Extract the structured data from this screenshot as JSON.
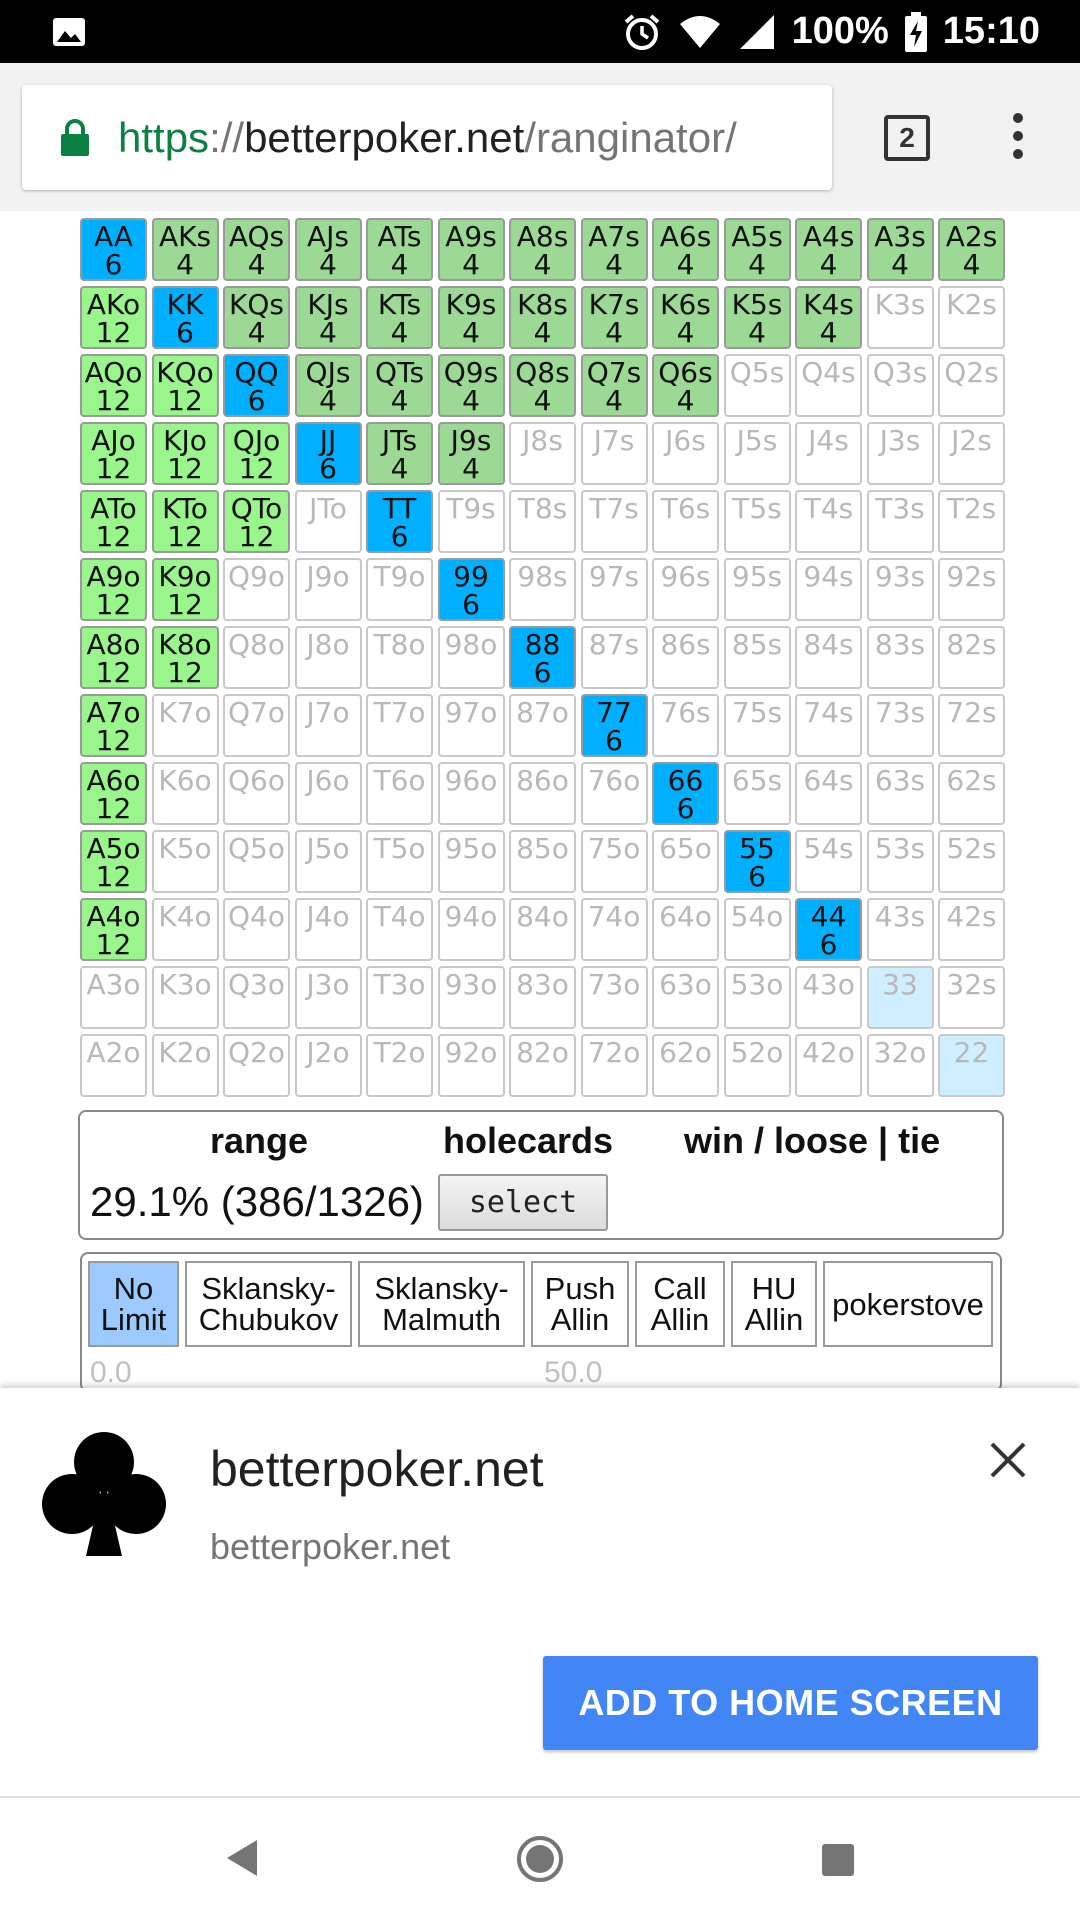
{
  "status_bar": {
    "battery": "100%",
    "time": "15:10"
  },
  "browser": {
    "url_scheme": "https",
    "url_sep": "://",
    "url_host": "betterpoker.net",
    "url_path": "/ranginator/",
    "tab_count": "2"
  },
  "grid": {
    "rows": [
      [
        [
          "AA",
          "6",
          "pair"
        ],
        [
          "AKs",
          "4",
          "suited"
        ],
        [
          "AQs",
          "4",
          "suited"
        ],
        [
          "AJs",
          "4",
          "suited"
        ],
        [
          "ATs",
          "4",
          "suited"
        ],
        [
          "A9s",
          "4",
          "suited"
        ],
        [
          "A8s",
          "4",
          "suited"
        ],
        [
          "A7s",
          "4",
          "suited"
        ],
        [
          "A6s",
          "4",
          "suited"
        ],
        [
          "A5s",
          "4",
          "suited"
        ],
        [
          "A4s",
          "4",
          "suited"
        ],
        [
          "A3s",
          "4",
          "suited"
        ],
        [
          "A2s",
          "4",
          "suited"
        ]
      ],
      [
        [
          "AKo",
          "12",
          "offsuit"
        ],
        [
          "KK",
          "6",
          "pair"
        ],
        [
          "KQs",
          "4",
          "suited"
        ],
        [
          "KJs",
          "4",
          "suited"
        ],
        [
          "KTs",
          "4",
          "suited"
        ],
        [
          "K9s",
          "4",
          "suited"
        ],
        [
          "K8s",
          "4",
          "suited"
        ],
        [
          "K7s",
          "4",
          "suited"
        ],
        [
          "K6s",
          "4",
          "suited"
        ],
        [
          "K5s",
          "4",
          "suited"
        ],
        [
          "K4s",
          "4",
          "suited"
        ],
        [
          "K3s",
          "",
          ""
        ],
        [
          "K2s",
          "",
          ""
        ]
      ],
      [
        [
          "AQo",
          "12",
          "offsuit"
        ],
        [
          "KQo",
          "12",
          "offsuit"
        ],
        [
          "QQ",
          "6",
          "pair"
        ],
        [
          "QJs",
          "4",
          "suited"
        ],
        [
          "QTs",
          "4",
          "suited"
        ],
        [
          "Q9s",
          "4",
          "suited"
        ],
        [
          "Q8s",
          "4",
          "suited"
        ],
        [
          "Q7s",
          "4",
          "suited"
        ],
        [
          "Q6s",
          "4",
          "suited"
        ],
        [
          "Q5s",
          "",
          ""
        ],
        [
          "Q4s",
          "",
          ""
        ],
        [
          "Q3s",
          "",
          ""
        ],
        [
          "Q2s",
          "",
          ""
        ]
      ],
      [
        [
          "AJo",
          "12",
          "offsuit"
        ],
        [
          "KJo",
          "12",
          "offsuit"
        ],
        [
          "QJo",
          "12",
          "offsuit"
        ],
        [
          "JJ",
          "6",
          "pair"
        ],
        [
          "JTs",
          "4",
          "suited"
        ],
        [
          "J9s",
          "4",
          "suited"
        ],
        [
          "J8s",
          "",
          ""
        ],
        [
          "J7s",
          "",
          ""
        ],
        [
          "J6s",
          "",
          ""
        ],
        [
          "J5s",
          "",
          ""
        ],
        [
          "J4s",
          "",
          ""
        ],
        [
          "J3s",
          "",
          ""
        ],
        [
          "J2s",
          "",
          ""
        ]
      ],
      [
        [
          "ATo",
          "12",
          "offsuit"
        ],
        [
          "KTo",
          "12",
          "offsuit"
        ],
        [
          "QTo",
          "12",
          "offsuit"
        ],
        [
          "JTo",
          "",
          ""
        ],
        [
          "TT",
          "6",
          "pair"
        ],
        [
          "T9s",
          "",
          ""
        ],
        [
          "T8s",
          "",
          ""
        ],
        [
          "T7s",
          "",
          ""
        ],
        [
          "T6s",
          "",
          ""
        ],
        [
          "T5s",
          "",
          ""
        ],
        [
          "T4s",
          "",
          ""
        ],
        [
          "T3s",
          "",
          ""
        ],
        [
          "T2s",
          "",
          ""
        ]
      ],
      [
        [
          "A9o",
          "12",
          "offsuit"
        ],
        [
          "K9o",
          "12",
          "offsuit"
        ],
        [
          "Q9o",
          "",
          ""
        ],
        [
          "J9o",
          "",
          ""
        ],
        [
          "T9o",
          "",
          ""
        ],
        [
          "99",
          "6",
          "pair"
        ],
        [
          "98s",
          "",
          ""
        ],
        [
          "97s",
          "",
          ""
        ],
        [
          "96s",
          "",
          ""
        ],
        [
          "95s",
          "",
          ""
        ],
        [
          "94s",
          "",
          ""
        ],
        [
          "93s",
          "",
          ""
        ],
        [
          "92s",
          "",
          ""
        ]
      ],
      [
        [
          "A8o",
          "12",
          "offsuit"
        ],
        [
          "K8o",
          "12",
          "offsuit"
        ],
        [
          "Q8o",
          "",
          ""
        ],
        [
          "J8o",
          "",
          ""
        ],
        [
          "T8o",
          "",
          ""
        ],
        [
          "98o",
          "",
          ""
        ],
        [
          "88",
          "6",
          "pair"
        ],
        [
          "87s",
          "",
          ""
        ],
        [
          "86s",
          "",
          ""
        ],
        [
          "85s",
          "",
          ""
        ],
        [
          "84s",
          "",
          ""
        ],
        [
          "83s",
          "",
          ""
        ],
        [
          "82s",
          "",
          ""
        ]
      ],
      [
        [
          "A7o",
          "12",
          "offsuit"
        ],
        [
          "K7o",
          "",
          ""
        ],
        [
          "Q7o",
          "",
          ""
        ],
        [
          "J7o",
          "",
          ""
        ],
        [
          "T7o",
          "",
          ""
        ],
        [
          "97o",
          "",
          ""
        ],
        [
          "87o",
          "",
          ""
        ],
        [
          "77",
          "6",
          "pair"
        ],
        [
          "76s",
          "",
          ""
        ],
        [
          "75s",
          "",
          ""
        ],
        [
          "74s",
          "",
          ""
        ],
        [
          "73s",
          "",
          ""
        ],
        [
          "72s",
          "",
          ""
        ]
      ],
      [
        [
          "A6o",
          "12",
          "offsuit"
        ],
        [
          "K6o",
          "",
          ""
        ],
        [
          "Q6o",
          "",
          ""
        ],
        [
          "J6o",
          "",
          ""
        ],
        [
          "T6o",
          "",
          ""
        ],
        [
          "96o",
          "",
          ""
        ],
        [
          "86o",
          "",
          ""
        ],
        [
          "76o",
          "",
          ""
        ],
        [
          "66",
          "6",
          "pair"
        ],
        [
          "65s",
          "",
          ""
        ],
        [
          "64s",
          "",
          ""
        ],
        [
          "63s",
          "",
          ""
        ],
        [
          "62s",
          "",
          ""
        ]
      ],
      [
        [
          "A5o",
          "12",
          "offsuit"
        ],
        [
          "K5o",
          "",
          ""
        ],
        [
          "Q5o",
          "",
          ""
        ],
        [
          "J5o",
          "",
          ""
        ],
        [
          "T5o",
          "",
          ""
        ],
        [
          "95o",
          "",
          ""
        ],
        [
          "85o",
          "",
          ""
        ],
        [
          "75o",
          "",
          ""
        ],
        [
          "65o",
          "",
          ""
        ],
        [
          "55",
          "6",
          "pair"
        ],
        [
          "54s",
          "",
          ""
        ],
        [
          "53s",
          "",
          ""
        ],
        [
          "52s",
          "",
          ""
        ]
      ],
      [
        [
          "A4o",
          "12",
          "offsuit"
        ],
        [
          "K4o",
          "",
          ""
        ],
        [
          "Q4o",
          "",
          ""
        ],
        [
          "J4o",
          "",
          ""
        ],
        [
          "T4o",
          "",
          ""
        ],
        [
          "94o",
          "",
          ""
        ],
        [
          "84o",
          "",
          ""
        ],
        [
          "74o",
          "",
          ""
        ],
        [
          "64o",
          "",
          ""
        ],
        [
          "54o",
          "",
          ""
        ],
        [
          "44",
          "6",
          "pair"
        ],
        [
          "43s",
          "",
          ""
        ],
        [
          "42s",
          "",
          ""
        ]
      ],
      [
        [
          "A3o",
          "",
          ""
        ],
        [
          "K3o",
          "",
          ""
        ],
        [
          "Q3o",
          "",
          ""
        ],
        [
          "J3o",
          "",
          ""
        ],
        [
          "T3o",
          "",
          ""
        ],
        [
          "93o",
          "",
          ""
        ],
        [
          "83o",
          "",
          ""
        ],
        [
          "73o",
          "",
          ""
        ],
        [
          "63o",
          "",
          ""
        ],
        [
          "53o",
          "",
          ""
        ],
        [
          "43o",
          "",
          ""
        ],
        [
          "33",
          "",
          "light"
        ],
        [
          "32s",
          "",
          ""
        ]
      ],
      [
        [
          "A2o",
          "",
          ""
        ],
        [
          "K2o",
          "",
          ""
        ],
        [
          "Q2o",
          "",
          ""
        ],
        [
          "J2o",
          "",
          ""
        ],
        [
          "T2o",
          "",
          ""
        ],
        [
          "92o",
          "",
          ""
        ],
        [
          "82o",
          "",
          ""
        ],
        [
          "72o",
          "",
          ""
        ],
        [
          "62o",
          "",
          ""
        ],
        [
          "52o",
          "",
          ""
        ],
        [
          "42o",
          "",
          ""
        ],
        [
          "32o",
          "",
          ""
        ],
        [
          "22",
          "",
          "light"
        ]
      ]
    ]
  },
  "range_panel": {
    "header_range": "range",
    "header_holecards": "holecards",
    "header_result": "win / loose | tie",
    "range_value": "29.1% (386/1326)",
    "select_label": "select"
  },
  "modes": {
    "items": [
      {
        "line1": "No",
        "line2": "Limit",
        "active": true
      },
      {
        "line1": "Sklansky-",
        "line2": "Chubukov",
        "active": false
      },
      {
        "line1": "Sklansky-",
        "line2": "Malmuth",
        "active": false
      },
      {
        "line1": "Push",
        "line2": "Allin",
        "active": false
      },
      {
        "line1": "Call",
        "line2": "Allin",
        "active": false
      },
      {
        "line1": "HU",
        "line2": "Allin",
        "active": false
      },
      {
        "line1": "pokerstove",
        "line2": "",
        "active": false
      }
    ],
    "slider_min": "0.0",
    "slider_mid": "50.0"
  },
  "banner": {
    "app_name": "betterpoker.net",
    "app_url": "betterpoker.net",
    "add_button": "ADD TO HOME SCREEN"
  },
  "icons": {
    "status_left": "image-icon",
    "alarm": "alarm-icon",
    "wifi": "wifi-icon",
    "signal": "signal-icon",
    "battery": "battery-charging-icon",
    "lock": "lock-icon",
    "menu": "more-vert-icon",
    "club": "club-icon",
    "close": "close-icon",
    "back": "back-icon",
    "home": "home-icon",
    "recent": "recent-apps-icon"
  },
  "colors": {
    "pair": "#00b0ff",
    "suited": "#9bd994",
    "offsuit": "#9af58c",
    "active_mode": "#9ccaff",
    "add_button": "#4285f4",
    "url_scheme": "#0b8043"
  }
}
